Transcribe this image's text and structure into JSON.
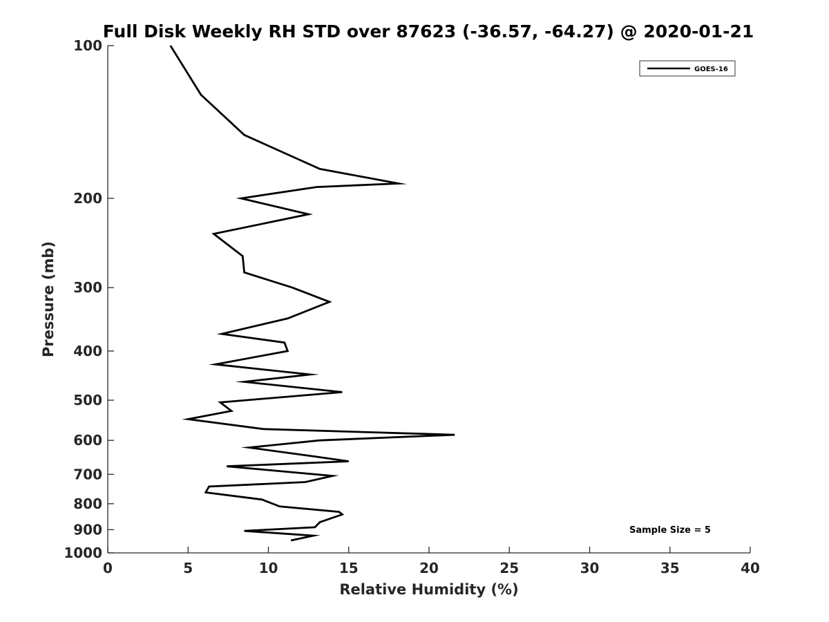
{
  "chart_data": {
    "type": "line",
    "title": "Full Disk Weekly RH STD over 87623 (-36.57, -64.27) @ 2020-01-21",
    "xlabel": "Relative Humidity (%)",
    "ylabel": "Pressure (mb)",
    "xlim": [
      0,
      40
    ],
    "ylim": [
      100,
      1000
    ],
    "yscale": "log",
    "y_reversed": true,
    "x_ticks": [
      0,
      5,
      10,
      15,
      20,
      25,
      30,
      35,
      40
    ],
    "y_ticks": [
      100,
      200,
      300,
      400,
      500,
      600,
      700,
      800,
      900,
      1000
    ],
    "grid": false,
    "legend_position": "top-right",
    "annotation": "Sample Size = 5",
    "series": [
      {
        "name": "GOES-16",
        "color": "#000000",
        "points": [
          [
            3.9,
            100
          ],
          [
            5.8,
            125
          ],
          [
            8.5,
            150
          ],
          [
            13.2,
            175
          ],
          [
            18.1,
            187
          ],
          [
            13.0,
            190
          ],
          [
            8.3,
            200
          ],
          [
            12.5,
            215
          ],
          [
            6.6,
            235
          ],
          [
            8.4,
            260
          ],
          [
            8.5,
            280
          ],
          [
            11.5,
            300
          ],
          [
            13.8,
            320
          ],
          [
            11.2,
            345
          ],
          [
            7.1,
            370
          ],
          [
            11.0,
            385
          ],
          [
            11.2,
            400
          ],
          [
            6.7,
            425
          ],
          [
            12.6,
            445
          ],
          [
            8.5,
            460
          ],
          [
            14.6,
            482
          ],
          [
            7.0,
            505
          ],
          [
            7.7,
            525
          ],
          [
            5.0,
            545
          ],
          [
            9.7,
            570
          ],
          [
            21.6,
            585
          ],
          [
            13.2,
            600
          ],
          [
            8.8,
            620
          ],
          [
            12.8,
            645
          ],
          [
            15.0,
            660
          ],
          [
            7.4,
            675
          ],
          [
            14.0,
            705
          ],
          [
            12.3,
            725
          ],
          [
            6.3,
            740
          ],
          [
            6.1,
            760
          ],
          [
            9.6,
            785
          ],
          [
            10.7,
            810
          ],
          [
            14.4,
            830
          ],
          [
            14.6,
            840
          ],
          [
            13.2,
            870
          ],
          [
            12.9,
            890
          ],
          [
            8.5,
            905
          ],
          [
            12.8,
            925
          ],
          [
            11.4,
            945
          ]
        ]
      }
    ]
  }
}
